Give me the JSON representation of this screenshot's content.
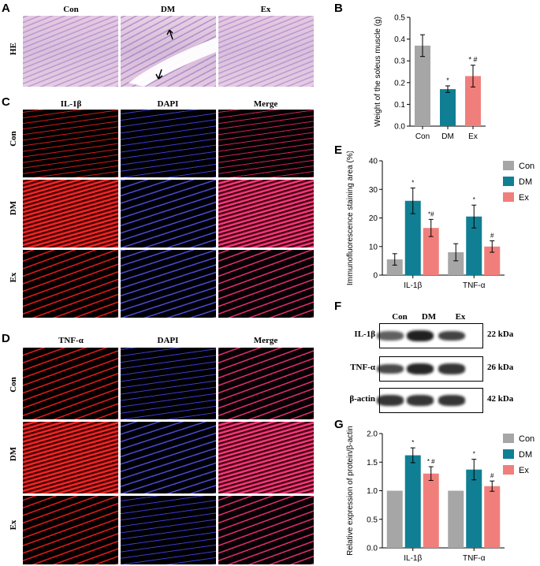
{
  "panel_labels": {
    "a": "A",
    "b": "B",
    "c": "C",
    "d": "D",
    "e": "E",
    "f": "F",
    "g": "G"
  },
  "groups": [
    "Con",
    "DM",
    "Ex"
  ],
  "panel_a": {
    "row_label": "HE"
  },
  "panel_c": {
    "columns": [
      "IL-1β",
      "DAPI",
      "Merge"
    ]
  },
  "panel_d": {
    "columns": [
      "TNF-α",
      "DAPI",
      "Merge"
    ]
  },
  "panel_f": {
    "lanes": [
      "Con",
      "DM",
      "Ex"
    ],
    "rows": [
      {
        "name": "IL-1β",
        "kda": "22 kDa",
        "intensity": [
          0.55,
          1.0,
          0.75
        ]
      },
      {
        "name": "TNF-α",
        "kda": "26 kDa",
        "intensity": [
          0.7,
          0.95,
          0.85
        ]
      },
      {
        "name": "β-actin",
        "kda": "42 kDa",
        "intensity": [
          0.85,
          0.85,
          0.85
        ]
      }
    ]
  },
  "colors": {
    "Con": "#a6a6a6",
    "DM": "#117f93",
    "Ex": "#f07f7b"
  },
  "chart_data": [
    {
      "id": "B",
      "type": "bar",
      "categories": [
        "Con",
        "DM",
        "Ex"
      ],
      "values": [
        0.37,
        0.17,
        0.23
      ],
      "errors": [
        0.05,
        0.015,
        0.05
      ],
      "annotations": [
        "",
        "*",
        "* #"
      ],
      "ylabel": "Weight of the soleus muscle (g)",
      "ylim": [
        0,
        0.5
      ],
      "yticks": [
        "0.0",
        "0.1",
        "0.2",
        "0.3",
        "0.4",
        "0.5"
      ]
    },
    {
      "id": "E",
      "type": "bar",
      "categories": [
        "IL-1β",
        "TNF-α"
      ],
      "series": [
        {
          "name": "Con",
          "values": [
            5.5,
            8.0
          ],
          "errors": [
            2.0,
            3.0
          ],
          "annotations": [
            "",
            ""
          ]
        },
        {
          "name": "DM",
          "values": [
            26.0,
            20.5
          ],
          "errors": [
            4.5,
            4.0
          ],
          "annotations": [
            "*",
            "*"
          ]
        },
        {
          "name": "Ex",
          "values": [
            16.5,
            10.0
          ],
          "errors": [
            3.0,
            2.0
          ],
          "annotations": [
            "*#",
            "#"
          ]
        }
      ],
      "ylabel": "Immunofluorescence staining area (%)",
      "ylim": [
        0,
        40
      ],
      "yticks": [
        "0",
        "10",
        "20",
        "30",
        "40"
      ],
      "legend": "right"
    },
    {
      "id": "G",
      "type": "bar",
      "categories": [
        "IL-1β",
        "TNF-α"
      ],
      "series": [
        {
          "name": "Con",
          "values": [
            1.0,
            1.0
          ],
          "errors": [
            0,
            0
          ],
          "annotations": [
            "",
            ""
          ]
        },
        {
          "name": "DM",
          "values": [
            1.62,
            1.37
          ],
          "errors": [
            0.13,
            0.18
          ],
          "annotations": [
            "*",
            "*"
          ]
        },
        {
          "name": "Ex",
          "values": [
            1.3,
            1.08
          ],
          "errors": [
            0.12,
            0.09
          ],
          "annotations": [
            "* #",
            "#"
          ]
        }
      ],
      "ylabel": "Relative expression of protein/β-actin",
      "ylim": [
        0,
        2.0
      ],
      "yticks": [
        "0.0",
        "0.5",
        "1.0",
        "1.5",
        "2.0"
      ],
      "legend": "right"
    }
  ]
}
